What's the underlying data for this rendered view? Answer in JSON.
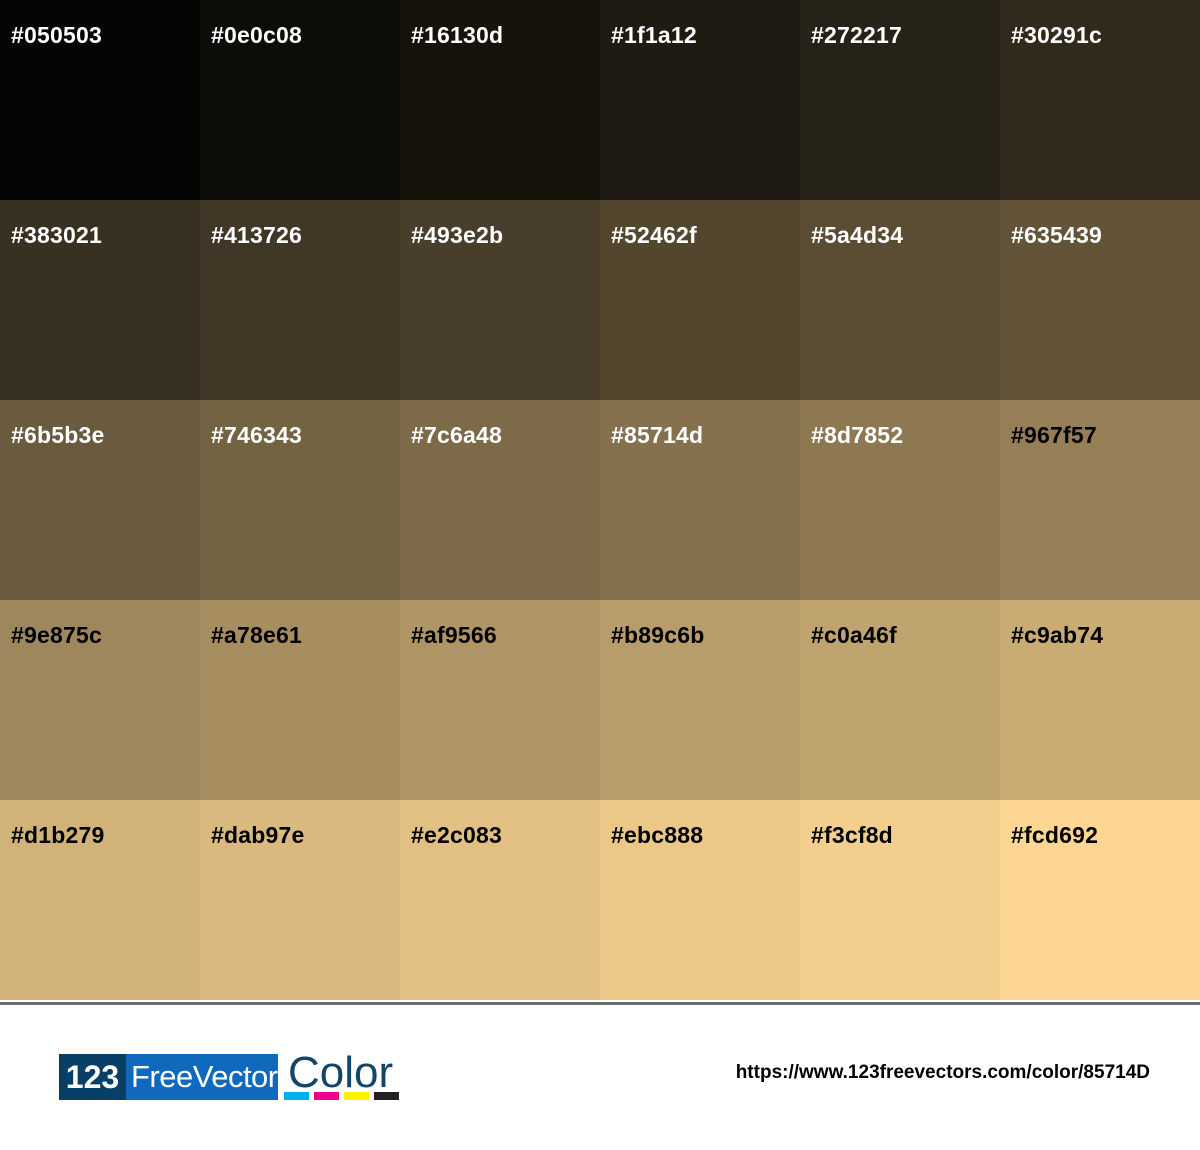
{
  "swatches": [
    {
      "hex": "#050503",
      "text": "#ffffff"
    },
    {
      "hex": "#0e0c08",
      "text": "#ffffff"
    },
    {
      "hex": "#16130d",
      "text": "#ffffff"
    },
    {
      "hex": "#1f1a12",
      "text": "#ffffff"
    },
    {
      "hex": "#272217",
      "text": "#ffffff"
    },
    {
      "hex": "#30291c",
      "text": "#ffffff"
    },
    {
      "hex": "#383021",
      "text": "#ffffff"
    },
    {
      "hex": "#413726",
      "text": "#ffffff"
    },
    {
      "hex": "#493e2b",
      "text": "#ffffff"
    },
    {
      "hex": "#52462f",
      "text": "#ffffff"
    },
    {
      "hex": "#5a4d34",
      "text": "#ffffff"
    },
    {
      "hex": "#635439",
      "text": "#ffffff"
    },
    {
      "hex": "#6b5b3e",
      "text": "#ffffff"
    },
    {
      "hex": "#746343",
      "text": "#ffffff"
    },
    {
      "hex": "#7c6a48",
      "text": "#ffffff"
    },
    {
      "hex": "#85714d",
      "text": "#ffffff"
    },
    {
      "hex": "#8d7852",
      "text": "#ffffff"
    },
    {
      "hex": "#967f57",
      "text": "#000000"
    },
    {
      "hex": "#9e875c",
      "text": "#000000"
    },
    {
      "hex": "#a78e61",
      "text": "#000000"
    },
    {
      "hex": "#af9566",
      "text": "#000000"
    },
    {
      "hex": "#b89c6b",
      "text": "#000000"
    },
    {
      "hex": "#c0a46f",
      "text": "#000000"
    },
    {
      "hex": "#c9ab74",
      "text": "#000000"
    },
    {
      "hex": "#d1b279",
      "text": "#000000"
    },
    {
      "hex": "#dab97e",
      "text": "#000000"
    },
    {
      "hex": "#e2c083",
      "text": "#000000"
    },
    {
      "hex": "#ebc888",
      "text": "#000000"
    },
    {
      "hex": "#f3cf8d",
      "text": "#000000"
    },
    {
      "hex": "#fcd692",
      "text": "#000000"
    }
  ],
  "footer": {
    "logo": {
      "part1": "123",
      "part2": "FreeVectors",
      "part3": "Color",
      "bar_colors": [
        "#00b0f0",
        "#ec008c",
        "#fff200",
        "#231f20"
      ]
    },
    "url": "https://www.123freevectors.com/color/85714D"
  }
}
